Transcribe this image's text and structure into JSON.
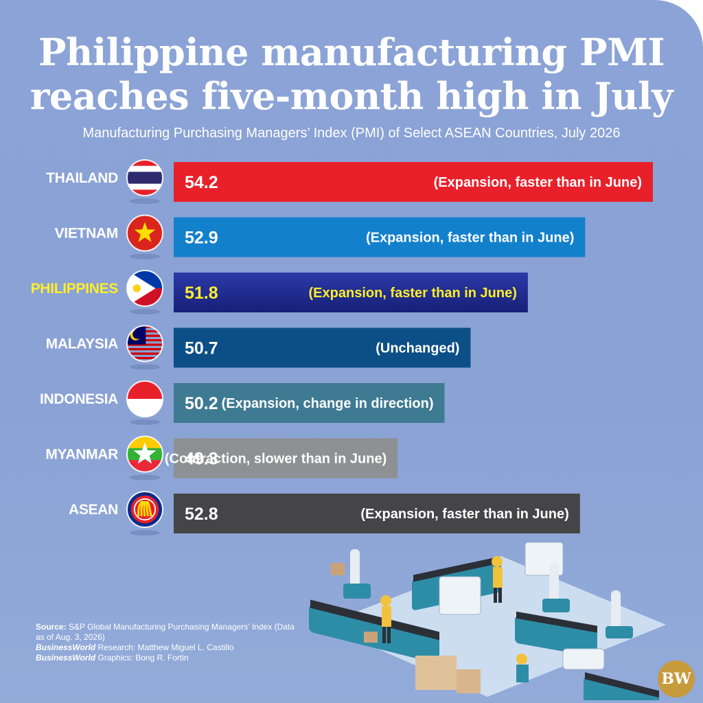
{
  "title_line_1": "Philippine manufacturing PMI",
  "title_line_2": "reaches five-month high in July",
  "subtitle": "Manufacturing Purchasing Managers’ Index (PMI) of Select ASEAN Countries, July 2026",
  "colors": {
    "background": "#8aa2d4",
    "highlight_label": "#ffee2a",
    "thailand": "#e8202a",
    "vietnam": "#1380cc",
    "philippines": "#1d2790",
    "malaysia": "#0b4f86",
    "indonesia": "#3e7b92",
    "myanmar": "#8f9093",
    "asean": "#454547",
    "logo": "#c79a3c"
  },
  "chart_data": {
    "type": "bar",
    "orientation": "horizontal",
    "title": "Manufacturing Purchasing Managers’ Index (PMI) of Select ASEAN Countries, July 2026",
    "categories": [
      "THAILAND",
      "VIETNAM",
      "PHILIPPINES",
      "MALAYSIA",
      "INDONESIA",
      "MYANMAR",
      "ASEAN"
    ],
    "values": [
      54.2,
      52.9,
      51.8,
      50.7,
      50.2,
      49.3,
      52.8
    ],
    "value_labels": [
      "54.2",
      "52.9",
      "51.8",
      "50.7",
      "50.2",
      "49.3",
      "52.8"
    ],
    "annotations": [
      "(Expansion, faster than in June)",
      "(Expansion, faster than in June)",
      "(Expansion, faster than in June)",
      "(Unchanged)",
      "(Expansion, change in direction)",
      "(Contraction, slower than in June)",
      "(Expansion, faster than in June)"
    ],
    "highlight": "PHILIPPINES",
    "bar_colors": [
      "#e8202a",
      "#1380cc",
      "#1d2790",
      "#0b4f86",
      "#3e7b92",
      "#8f9093",
      "#454547"
    ],
    "flags": [
      "thailand-flag-icon",
      "vietnam-flag-icon",
      "philippines-flag-icon",
      "malaysia-flag-icon",
      "indonesia-flag-icon",
      "myanmar-flag-icon",
      "asean-emblem-icon"
    ],
    "xlabel": "",
    "ylabel": "",
    "grid": false
  },
  "source": {
    "source_label": "Source:",
    "source_text": "S&P Global Manufacturing Purchasing Managers’ Index (Data as of Aug. 3, 2026)",
    "research_brand": "BusinessWorld",
    "research_label": "Research:",
    "research_name": "Matthew Miguel L. Castillo",
    "graphics_brand": "BusinessWorld",
    "graphics_label": "Graphics:",
    "graphics_name": "Bong R. Fortin"
  },
  "logo_text": "BW",
  "illustration_icon": "factory-assembly-line-illustration-icon"
}
